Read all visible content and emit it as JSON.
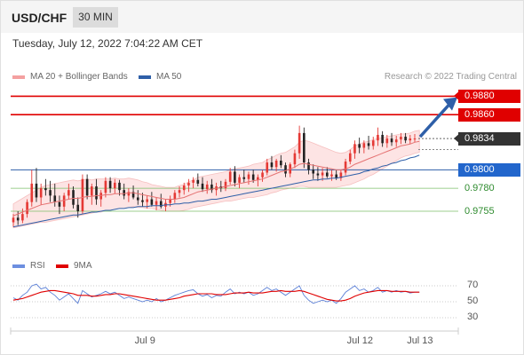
{
  "header": {
    "symbol": "USD/CHF",
    "interval": "30 MIN"
  },
  "datetime": "Tuesday, July 12, 2022 7:04:22 AM CET",
  "legend": {
    "ma20": {
      "label": "MA 20 + Bollinger Bands",
      "color": "#f08080"
    },
    "ma50": {
      "label": "MA 50",
      "color": "#2e5fa8"
    },
    "rsi": {
      "label": "RSI",
      "color": "#5b7fd6"
    },
    "rsi_ma": {
      "label": "9MA",
      "color": "#e00000"
    }
  },
  "credit": "Research © 2022 Trading Central",
  "colors": {
    "up": "#e53935",
    "down": "#222222",
    "resistance": "#e00000",
    "pivot": "#2e5fa8",
    "support": "#2e8b2e",
    "last": "#333333"
  },
  "chart_data": [
    {
      "type": "candlestick",
      "ylim": [
        0.9728,
        0.9892
      ],
      "x_ticks": [
        {
          "label": "Jul 9",
          "index": 29
        },
        {
          "label": "Jul 12",
          "index": 75
        },
        {
          "label": "Jul 13",
          "index": 88
        }
      ],
      "levels": [
        {
          "value": 0.988,
          "label": "0.9880",
          "kind": "resistance",
          "tag": "arrow"
        },
        {
          "value": 0.986,
          "label": "0.9860",
          "kind": "resistance",
          "tag": "box"
        },
        {
          "value": 0.9834,
          "label": "0.9834",
          "kind": "last",
          "tag": "arrow"
        },
        {
          "value": 0.98,
          "label": "0.9800",
          "kind": "pivot",
          "tag": "box"
        },
        {
          "value": 0.978,
          "label": "0.9780",
          "kind": "support",
          "tag": "text"
        },
        {
          "value": 0.9755,
          "label": "0.9755",
          "kind": "support",
          "tag": "text"
        }
      ],
      "forecast_arrow": {
        "from_index": 87,
        "from_value": 0.9834,
        "to_value": 0.9875
      },
      "ohlc": [
        [
          0.9743,
          0.9752,
          0.9738,
          0.9748
        ],
        [
          0.9748,
          0.9755,
          0.974,
          0.9745
        ],
        [
          0.9745,
          0.9758,
          0.9742,
          0.9752
        ],
        [
          0.9752,
          0.9768,
          0.9748,
          0.9765
        ],
        [
          0.9765,
          0.98,
          0.976,
          0.9785
        ],
        [
          0.9785,
          0.9802,
          0.9765,
          0.977
        ],
        [
          0.977,
          0.9785,
          0.9762,
          0.978
        ],
        [
          0.978,
          0.979,
          0.9772,
          0.9778
        ],
        [
          0.9778,
          0.9788,
          0.9765,
          0.9772
        ],
        [
          0.9772,
          0.9785,
          0.976,
          0.9765
        ],
        [
          0.9765,
          0.9772,
          0.9752,
          0.976
        ],
        [
          0.976,
          0.9775,
          0.9755,
          0.9772
        ],
        [
          0.9772,
          0.9785,
          0.9768,
          0.9778
        ],
        [
          0.9778,
          0.9782,
          0.9758,
          0.9762
        ],
        [
          0.9762,
          0.977,
          0.9748,
          0.9755
        ],
        [
          0.9755,
          0.9795,
          0.9752,
          0.979
        ],
        [
          0.979,
          0.9795,
          0.9768,
          0.9772
        ],
        [
          0.9772,
          0.9785,
          0.9762,
          0.9782
        ],
        [
          0.9782,
          0.979,
          0.9762,
          0.9768
        ],
        [
          0.9768,
          0.9778,
          0.976,
          0.9775
        ],
        [
          0.9775,
          0.9792,
          0.977,
          0.9788
        ],
        [
          0.9788,
          0.9792,
          0.9775,
          0.978
        ],
        [
          0.978,
          0.979,
          0.9774,
          0.9786
        ],
        [
          0.9786,
          0.9789,
          0.9772,
          0.9778
        ],
        [
          0.9778,
          0.9785,
          0.9768,
          0.9772
        ],
        [
          0.9772,
          0.978,
          0.9765,
          0.9776
        ],
        [
          0.9776,
          0.9783,
          0.9768,
          0.977
        ],
        [
          0.977,
          0.9778,
          0.9762,
          0.9767
        ],
        [
          0.9767,
          0.9775,
          0.976,
          0.9765
        ],
        [
          0.9765,
          0.9772,
          0.9758,
          0.9768
        ],
        [
          0.9768,
          0.9776,
          0.976,
          0.9762
        ],
        [
          0.9762,
          0.977,
          0.9756,
          0.9766
        ],
        [
          0.9766,
          0.9774,
          0.9758,
          0.976
        ],
        [
          0.976,
          0.9768,
          0.9755,
          0.9764
        ],
        [
          0.9764,
          0.9772,
          0.976,
          0.9768
        ],
        [
          0.9768,
          0.9778,
          0.9764,
          0.9775
        ],
        [
          0.9775,
          0.9782,
          0.977,
          0.9778
        ],
        [
          0.9778,
          0.9786,
          0.9773,
          0.9783
        ],
        [
          0.9783,
          0.979,
          0.9776,
          0.9786
        ],
        [
          0.9786,
          0.9792,
          0.978,
          0.9789
        ],
        [
          0.9789,
          0.9796,
          0.9782,
          0.9785
        ],
        [
          0.9785,
          0.9792,
          0.9776,
          0.9779
        ],
        [
          0.9779,
          0.9788,
          0.9774,
          0.9784
        ],
        [
          0.9784,
          0.979,
          0.9775,
          0.9778
        ],
        [
          0.9778,
          0.9786,
          0.9772,
          0.9782
        ],
        [
          0.9782,
          0.9788,
          0.9776,
          0.978
        ],
        [
          0.978,
          0.979,
          0.9777,
          0.9787
        ],
        [
          0.9787,
          0.9802,
          0.9784,
          0.9798
        ],
        [
          0.9798,
          0.9804,
          0.9782,
          0.9786
        ],
        [
          0.9786,
          0.9795,
          0.978,
          0.9792
        ],
        [
          0.9792,
          0.98,
          0.9786,
          0.979
        ],
        [
          0.979,
          0.9798,
          0.9784,
          0.9795
        ],
        [
          0.9795,
          0.98,
          0.9786,
          0.9789
        ],
        [
          0.9789,
          0.9795,
          0.9782,
          0.9792
        ],
        [
          0.9792,
          0.98,
          0.9787,
          0.9797
        ],
        [
          0.9797,
          0.9812,
          0.9794,
          0.9808
        ],
        [
          0.9808,
          0.9815,
          0.98,
          0.9803
        ],
        [
          0.9803,
          0.9812,
          0.9798,
          0.981
        ],
        [
          0.981,
          0.9816,
          0.9802,
          0.9805
        ],
        [
          0.9805,
          0.9808,
          0.9792,
          0.9796
        ],
        [
          0.9796,
          0.9808,
          0.9792,
          0.9806
        ],
        [
          0.9806,
          0.9822,
          0.9802,
          0.9818
        ],
        [
          0.9818,
          0.9848,
          0.9812,
          0.984
        ],
        [
          0.984,
          0.9846,
          0.9802,
          0.9808
        ],
        [
          0.9808,
          0.9812,
          0.9795,
          0.98
        ],
        [
          0.98,
          0.9806,
          0.979,
          0.9796
        ],
        [
          0.9796,
          0.9803,
          0.9788,
          0.9794
        ],
        [
          0.9794,
          0.9802,
          0.9788,
          0.9797
        ],
        [
          0.9797,
          0.9803,
          0.9791,
          0.9793
        ],
        [
          0.9793,
          0.98,
          0.9788,
          0.9795
        ],
        [
          0.9795,
          0.98,
          0.9789,
          0.9791
        ],
        [
          0.9791,
          0.98,
          0.9788,
          0.9797
        ],
        [
          0.9797,
          0.9812,
          0.9794,
          0.9809
        ],
        [
          0.9809,
          0.9822,
          0.9806,
          0.9818
        ],
        [
          0.9818,
          0.9832,
          0.9812,
          0.9828
        ],
        [
          0.9828,
          0.9835,
          0.9818,
          0.9824
        ],
        [
          0.9824,
          0.9832,
          0.9818,
          0.9829
        ],
        [
          0.9829,
          0.9837,
          0.9822,
          0.9826
        ],
        [
          0.9826,
          0.9836,
          0.9822,
          0.9832
        ],
        [
          0.9832,
          0.9846,
          0.9826,
          0.9838
        ],
        [
          0.9838,
          0.9842,
          0.9825,
          0.9829
        ],
        [
          0.9829,
          0.9838,
          0.9824,
          0.9834
        ],
        [
          0.9834,
          0.984,
          0.9826,
          0.983
        ],
        [
          0.983,
          0.9837,
          0.9825,
          0.9833
        ],
        [
          0.9833,
          0.984,
          0.9828,
          0.9836
        ],
        [
          0.9836,
          0.984,
          0.9829,
          0.9832
        ],
        [
          0.9832,
          0.9838,
          0.9828,
          0.9834
        ],
        [
          0.9834,
          0.9839,
          0.983,
          0.9834
        ]
      ],
      "ma20": [
        0.975,
        0.9752,
        0.9754,
        0.9756,
        0.9758,
        0.976,
        0.9762,
        0.9763,
        0.9764,
        0.9765,
        0.9766,
        0.9767,
        0.9768,
        0.9769,
        0.9769,
        0.977,
        0.9771,
        0.9771,
        0.9772,
        0.9772,
        0.9773,
        0.9773,
        0.9774,
        0.9774,
        0.9774,
        0.9775,
        0.9775,
        0.9774,
        0.9773,
        0.9772,
        0.9771,
        0.977,
        0.9769,
        0.9768,
        0.9768,
        0.9768,
        0.9769,
        0.977,
        0.9772,
        0.9774,
        0.9776,
        0.9777,
        0.9778,
        0.9779,
        0.978,
        0.9781,
        0.9782,
        0.9783,
        0.9784,
        0.9785,
        0.9786,
        0.9787,
        0.9788,
        0.9789,
        0.979,
        0.9792,
        0.9794,
        0.9796,
        0.9798,
        0.9799,
        0.9801,
        0.9803,
        0.9806,
        0.9807,
        0.9806,
        0.9805,
        0.9804,
        0.9803,
        0.9802,
        0.9801,
        0.98,
        0.98,
        0.9801,
        0.9803,
        0.9806,
        0.9808,
        0.981,
        0.9812,
        0.9814,
        0.9816,
        0.9818,
        0.982,
        0.9822,
        0.9824,
        0.9826,
        0.9827,
        0.9828,
        0.983,
        0.9831
      ],
      "ma20_band_width": [
        0.0013,
        0.0014,
        0.0015,
        0.0016,
        0.0017,
        0.0018,
        0.0019,
        0.002,
        0.002,
        0.002,
        0.002,
        0.002,
        0.002,
        0.002,
        0.0019,
        0.0019,
        0.0019,
        0.0018,
        0.0018,
        0.0018,
        0.0017,
        0.0017,
        0.0017,
        0.0016,
        0.0016,
        0.0016,
        0.0015,
        0.0015,
        0.0014,
        0.0014,
        0.0013,
        0.0013,
        0.0013,
        0.0013,
        0.0013,
        0.0013,
        0.0014,
        0.0014,
        0.0015,
        0.0015,
        0.0016,
        0.0016,
        0.0016,
        0.0016,
        0.0016,
        0.0016,
        0.0016,
        0.0017,
        0.0017,
        0.0017,
        0.0017,
        0.0017,
        0.0018,
        0.0018,
        0.0018,
        0.0019,
        0.0019,
        0.002,
        0.002,
        0.002,
        0.0021,
        0.0022,
        0.0024,
        0.0025,
        0.0025,
        0.0024,
        0.0023,
        0.0022,
        0.0021,
        0.002,
        0.0019,
        0.0018,
        0.0018,
        0.0019,
        0.002,
        0.002,
        0.002,
        0.0019,
        0.0019,
        0.0018,
        0.0017,
        0.0016,
        0.0015,
        0.0014,
        0.0013,
        0.0012,
        0.0012,
        0.0012,
        0.0012
      ],
      "ma50": [
        0.9738,
        0.9739,
        0.974,
        0.9741,
        0.9742,
        0.9743,
        0.9744,
        0.9745,
        0.9746,
        0.9747,
        0.9748,
        0.9749,
        0.975,
        0.9751,
        0.9751,
        0.9752,
        0.9753,
        0.9754,
        0.9754,
        0.9755,
        0.9756,
        0.9756,
        0.9757,
        0.9758,
        0.9758,
        0.9759,
        0.9759,
        0.976,
        0.976,
        0.976,
        0.9761,
        0.9761,
        0.9761,
        0.9762,
        0.9762,
        0.9763,
        0.9763,
        0.9764,
        0.9764,
        0.9765,
        0.9766,
        0.9766,
        0.9767,
        0.9768,
        0.9768,
        0.9769,
        0.977,
        0.9771,
        0.9772,
        0.9773,
        0.9774,
        0.9775,
        0.9776,
        0.9777,
        0.9778,
        0.9779,
        0.978,
        0.9781,
        0.9782,
        0.9783,
        0.9784,
        0.9785,
        0.9786,
        0.9787,
        0.9788,
        0.9789,
        0.9789,
        0.979,
        0.979,
        0.9791,
        0.9791,
        0.9792,
        0.9793,
        0.9794,
        0.9795,
        0.9796,
        0.9798,
        0.9799,
        0.9801,
        0.9802,
        0.9804,
        0.9805,
        0.9807,
        0.9808,
        0.981,
        0.9811,
        0.9813,
        0.9814,
        0.9816
      ]
    },
    {
      "type": "line",
      "ylim": [
        20,
        80
      ],
      "y_ticks": [
        70,
        50,
        30
      ],
      "series": [
        {
          "name": "RSI",
          "values": [
            55,
            52,
            58,
            62,
            70,
            72,
            66,
            68,
            62,
            58,
            52,
            56,
            60,
            54,
            48,
            64,
            60,
            56,
            58,
            60,
            63,
            60,
            62,
            58,
            54,
            56,
            54,
            52,
            50,
            52,
            50,
            54,
            50,
            52,
            55,
            58,
            60,
            62,
            64,
            65,
            60,
            57,
            59,
            55,
            58,
            57,
            62,
            66,
            60,
            62,
            60,
            62,
            58,
            60,
            64,
            68,
            64,
            66,
            62,
            58,
            62,
            66,
            70,
            58,
            52,
            48,
            50,
            52,
            50,
            52,
            48,
            54,
            62,
            66,
            70,
            64,
            66,
            62,
            64,
            68,
            62,
            64,
            62,
            64,
            62,
            63,
            61,
            62,
            62
          ]
        },
        {
          "name": "9MA",
          "values": [
            52,
            53,
            54,
            56,
            58,
            60,
            62,
            63,
            64,
            64,
            63,
            62,
            61,
            60,
            58,
            58,
            58,
            57,
            57,
            58,
            59,
            59,
            60,
            60,
            59,
            58,
            57,
            56,
            55,
            54,
            53,
            52,
            52,
            52,
            53,
            54,
            55,
            57,
            58,
            59,
            60,
            60,
            60,
            60,
            59,
            59,
            59,
            60,
            61,
            61,
            61,
            62,
            61,
            61,
            61,
            62,
            63,
            63,
            64,
            63,
            63,
            63,
            64,
            63,
            61,
            59,
            57,
            55,
            53,
            52,
            51,
            51,
            52,
            54,
            57,
            59,
            61,
            62,
            63,
            64,
            64,
            64,
            63,
            63,
            63,
            63,
            62,
            62,
            62
          ]
        }
      ]
    }
  ]
}
